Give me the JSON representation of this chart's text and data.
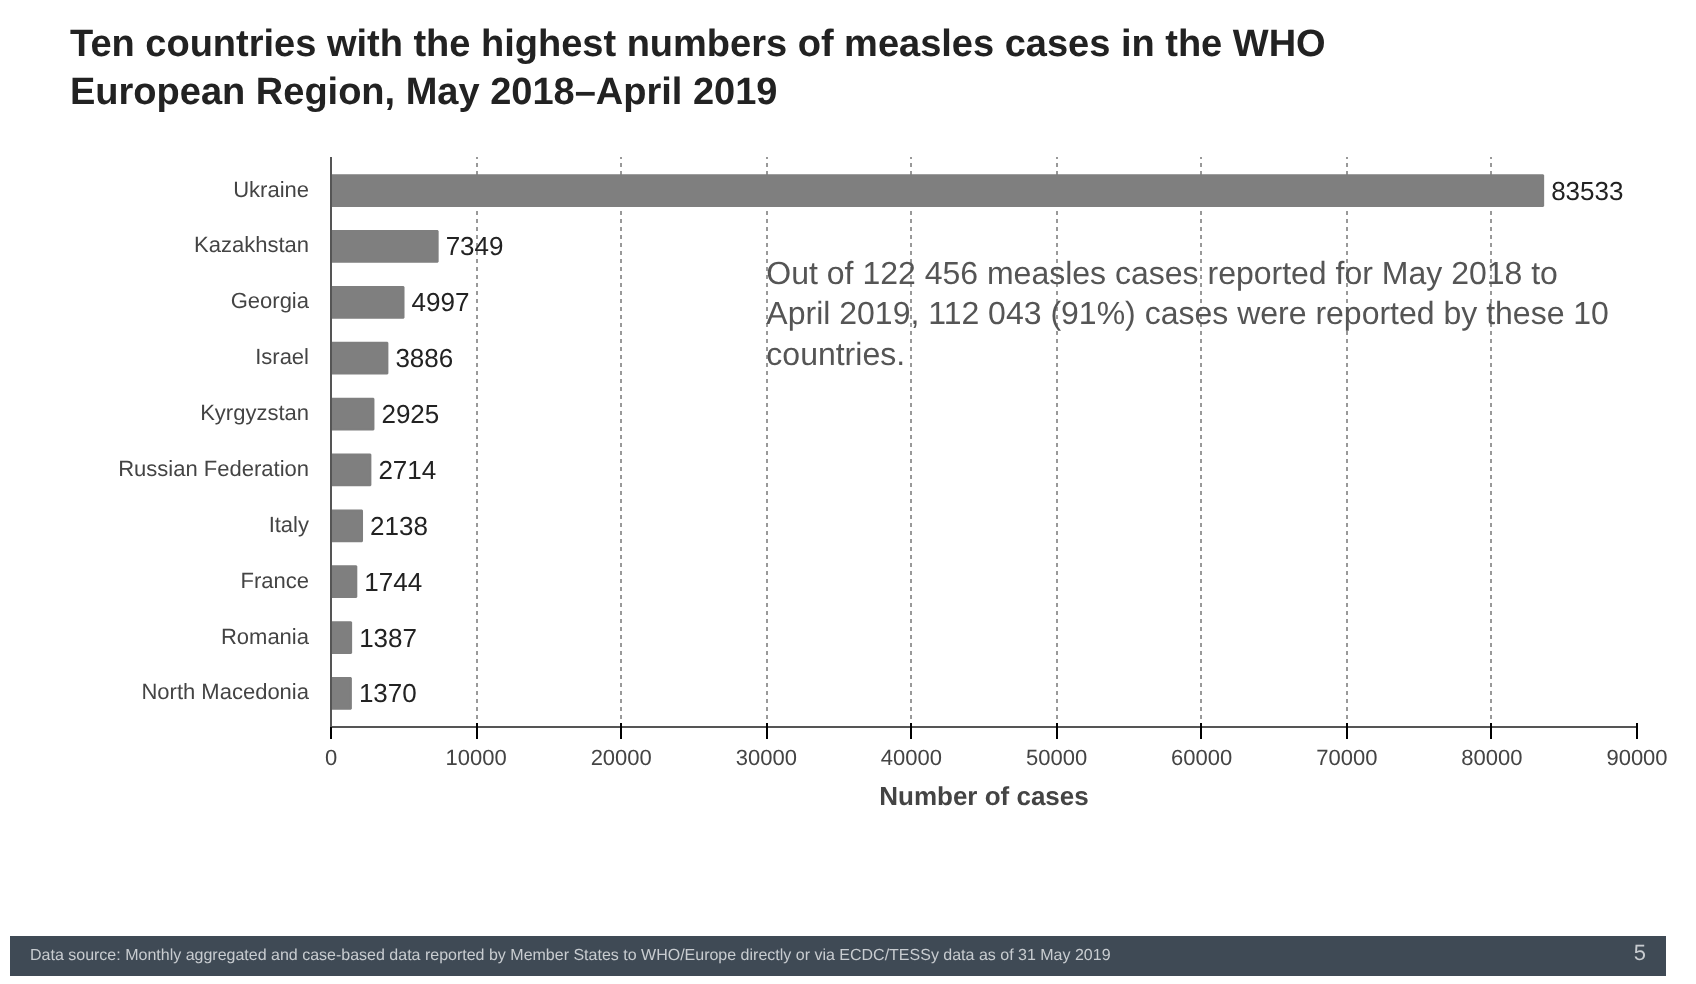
{
  "chart_data": {
    "type": "bar",
    "orientation": "horizontal",
    "title": "Ten countries with the highest numbers of measles cases in the WHO European Region, May 2018–April 2019",
    "categories": [
      "Ukraine",
      "Kazakhstan",
      "Georgia",
      "Israel",
      "Kyrgyzstan",
      "Russian Federation",
      "Italy",
      "France",
      "Romania",
      "North Macedonia"
    ],
    "values": [
      83533,
      7349,
      4997,
      3886,
      2925,
      2714,
      2138,
      1744,
      1387,
      1370
    ],
    "color": "#7f7f7f",
    "xlim": [
      0,
      90000
    ],
    "xticks": [
      0,
      10000,
      20000,
      30000,
      40000,
      50000,
      60000,
      70000,
      80000,
      90000
    ],
    "xlabel": "Number of cases",
    "grid": "x",
    "data_labels": true,
    "annotations": [
      "Out of 122 456 measles cases reported for May 2018 to April 2019, 112 043 (91%) cases were reported by these 10 countries.",
      "Data source: Monthly aggregated and case-based data reported by Member States to WHO/Europe directly or via ECDC/TESSy data as of 31 May 2019",
      "5"
    ]
  }
}
